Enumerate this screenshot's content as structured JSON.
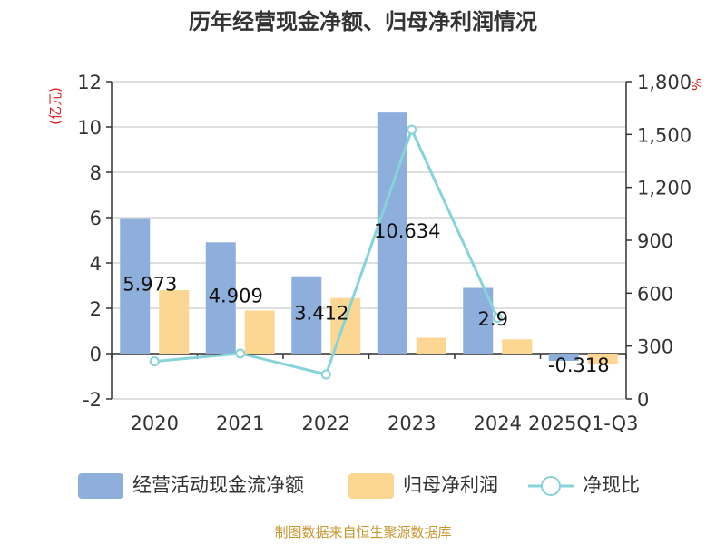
{
  "chart_data": {
    "type": "bar",
    "title": "历年经营现金净额、归母净利润情况",
    "categories": [
      "2020",
      "2021",
      "2022",
      "2023",
      "2024",
      "2025Q1-Q3"
    ],
    "left_axis_unit": "(亿元)",
    "right_axis_unit": "%",
    "ylim_left": [
      -2,
      12
    ],
    "yticks_left": [
      "-2",
      "0",
      "2",
      "4",
      "6",
      "8",
      "10",
      "12"
    ],
    "ylim_right": [
      0,
      1800
    ],
    "yticks_right": [
      "0",
      "300",
      "600",
      "900",
      "1,200",
      "1,500",
      "1,800"
    ],
    "series": [
      {
        "name": "经营活动现金流净额",
        "type": "bar",
        "axis": "left",
        "values": [
          5.973,
          4.909,
          3.412,
          10.634,
          2.9,
          -0.318
        ],
        "labels": [
          "5.973",
          "4.909",
          "3.412",
          "10.634",
          "2.9",
          "-0.318"
        ]
      },
      {
        "name": "归母净利润",
        "type": "bar",
        "axis": "left",
        "values": [
          2.8,
          1.9,
          2.45,
          0.7,
          0.63,
          -0.48
        ]
      },
      {
        "name": "净现比",
        "type": "line",
        "axis": "right",
        "values": [
          213,
          258,
          139,
          1527,
          460,
          null
        ]
      }
    ],
    "colors": {
      "bar1": "#8eaedb",
      "bar2": "#fcd693",
      "line": "#86d3d9",
      "axis": "#333333",
      "grid": "#cccccc",
      "unit": "#e02020",
      "source": "#c8962f"
    },
    "source": "制图数据来自恒生聚源数据库"
  }
}
